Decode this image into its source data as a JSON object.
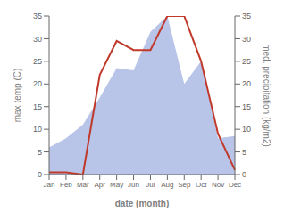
{
  "chart_data": {
    "type": "line",
    "categories": [
      "Jan",
      "Feb",
      "Mar",
      "Apr",
      "May",
      "Jun",
      "Jul",
      "Aug",
      "Sep",
      "Oct",
      "Nov",
      "Dec"
    ],
    "xlabel": "date (month)",
    "ylabel": "max temp (C)",
    "y2label": "med. precipitation (kg/m2)",
    "ylim": [
      0,
      35
    ],
    "yticks": [
      0,
      5,
      10,
      15,
      20,
      25,
      30,
      35
    ],
    "y2lim": [
      0,
      35
    ],
    "y2ticks": [
      0,
      5,
      10,
      15,
      20,
      25,
      30,
      35
    ],
    "series": [
      {
        "type": "area",
        "color": "#b8c4e8",
        "axis": "y2",
        "values": [
          6.0,
          8.0,
          11.0,
          17.0,
          23.5,
          23.0,
          31.5,
          35.0,
          20.0,
          25.0,
          8.0,
          8.5
        ]
      },
      {
        "type": "line",
        "color": "#c0392b",
        "axis": "y",
        "values": [
          0.5,
          0.5,
          0.0,
          22.0,
          29.5,
          27.5,
          27.5,
          35.0,
          35.0,
          25.0,
          9.0,
          1.0
        ]
      }
    ]
  }
}
